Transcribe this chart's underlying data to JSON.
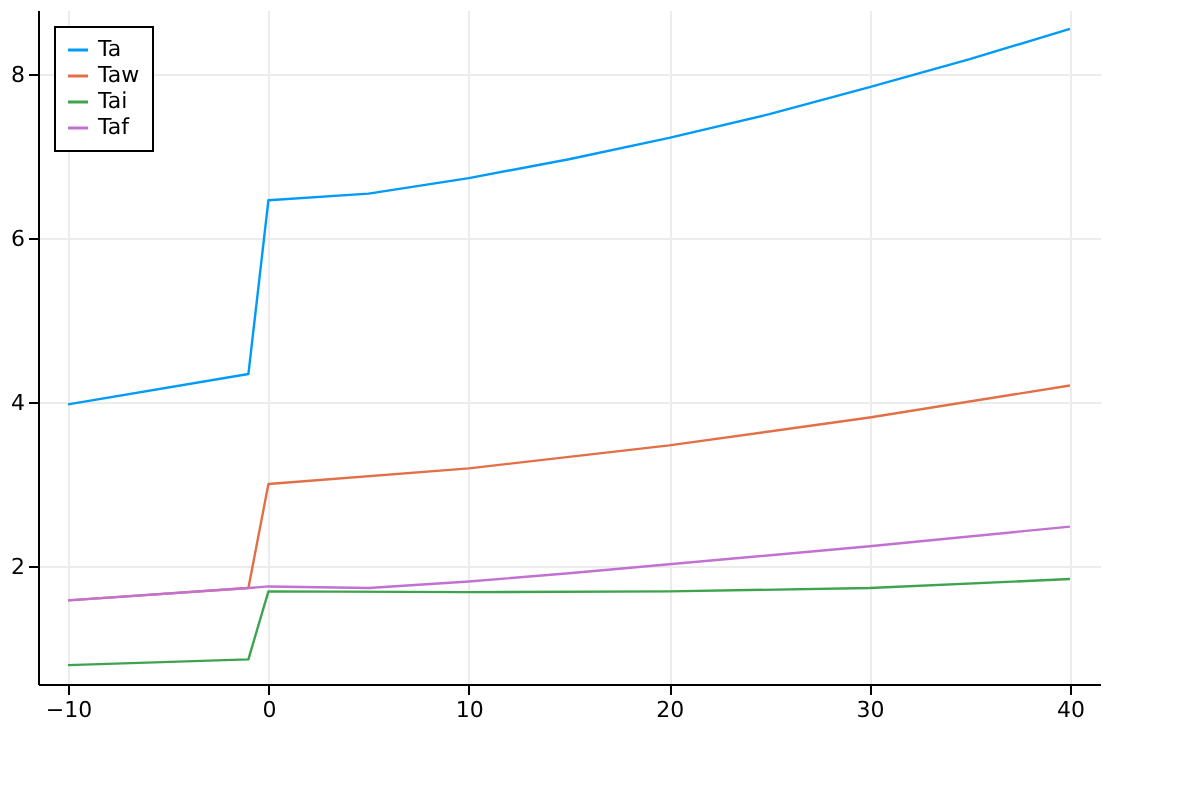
{
  "chart_data": {
    "type": "line",
    "xlim": [
      -11.5,
      41.5
    ],
    "ylim": [
      0.57,
      8.79
    ],
    "xticks": [
      -10,
      0,
      10,
      20,
      30,
      40
    ],
    "yticks": [
      2,
      4,
      6,
      8
    ],
    "grid": true,
    "legend": "top left",
    "line_style": "solid",
    "series": [
      {
        "name": "Ta",
        "color": "#009af9",
        "x": [
          -10,
          -1,
          0,
          5,
          10,
          15,
          20,
          25,
          30,
          35,
          40
        ],
        "values": [
          3.98,
          4.35,
          6.47,
          6.55,
          6.74,
          6.97,
          7.23,
          7.52,
          7.85,
          8.19,
          8.56
        ]
      },
      {
        "name": "Taw",
        "color": "#e26f46",
        "x": [
          -10,
          -1,
          0,
          10,
          20,
          30,
          40
        ],
        "values": [
          1.59,
          1.74,
          3.01,
          3.2,
          3.48,
          3.82,
          4.21
        ]
      },
      {
        "name": "Tai",
        "color": "#3da44d",
        "x": [
          -10,
          -1,
          0,
          10,
          20,
          30,
          40
        ],
        "values": [
          0.8,
          0.87,
          1.7,
          1.69,
          1.7,
          1.74,
          1.85
        ]
      },
      {
        "name": "Taf",
        "color": "#c271d2",
        "x": [
          -10,
          -1,
          0,
          5,
          10,
          15,
          20,
          30,
          40
        ],
        "values": [
          1.59,
          1.74,
          1.76,
          1.74,
          1.82,
          1.92,
          2.03,
          2.25,
          2.49
        ]
      }
    ]
  }
}
